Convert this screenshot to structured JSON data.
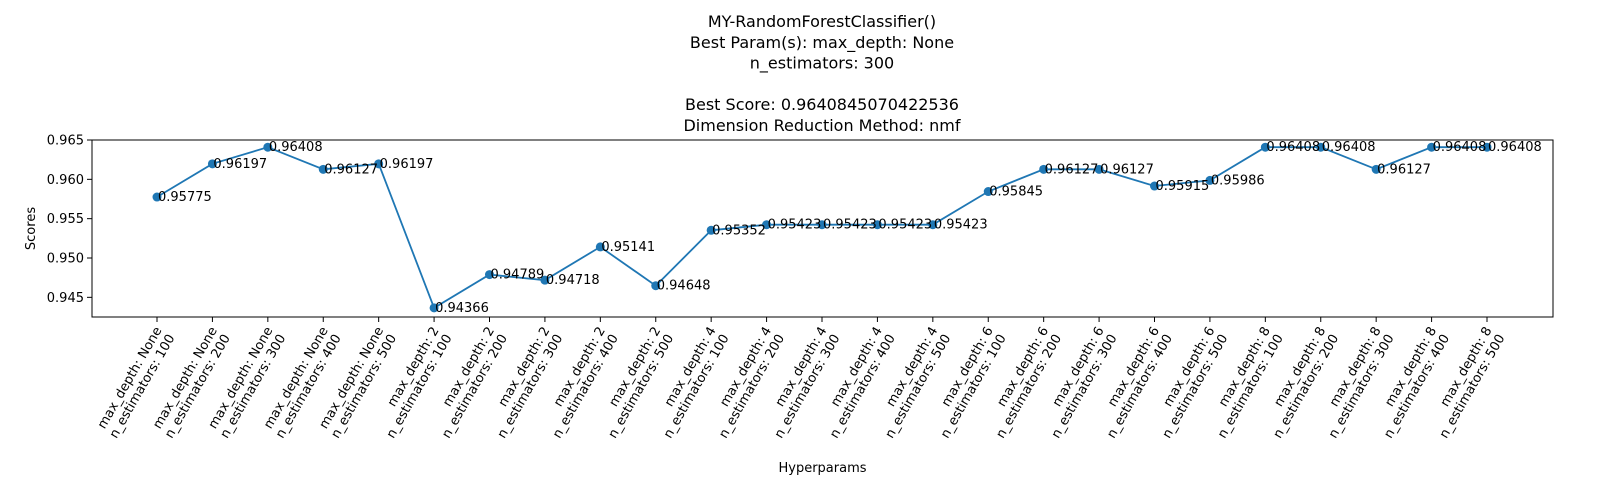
{
  "chart_data": {
    "type": "line",
    "title_lines": [
      "MY-RandomForestClassifier()",
      "Best Param(s): max_depth: None",
      "n_estimators: 300",
      "",
      "Best Score: 0.9640845070422536",
      "Dimension Reduction Method: nmf"
    ],
    "xlabel": "Hyperparams",
    "ylabel": "Scores",
    "ylim": [
      0.9425,
      0.965
    ],
    "yticks": [
      0.945,
      0.95,
      0.955,
      0.96,
      0.965
    ],
    "ytick_labels": [
      "0.945",
      "0.950",
      "0.955",
      "0.960",
      "0.965"
    ],
    "grid": false,
    "line_color": "#1f77b4",
    "categories": [
      [
        "max_depth: None",
        "n_estimators: 100"
      ],
      [
        "max_depth: None",
        "n_estimators: 200"
      ],
      [
        "max_depth: None",
        "n_estimators: 300"
      ],
      [
        "max_depth: None",
        "n_estimators: 400"
      ],
      [
        "max_depth: None",
        "n_estimators: 500"
      ],
      [
        "max_depth: 2",
        "n_estimators: 100"
      ],
      [
        "max_depth: 2",
        "n_estimators: 200"
      ],
      [
        "max_depth: 2",
        "n_estimators: 300"
      ],
      [
        "max_depth: 2",
        "n_estimators: 400"
      ],
      [
        "max_depth: 2",
        "n_estimators: 500"
      ],
      [
        "max_depth: 4",
        "n_estimators: 100"
      ],
      [
        "max_depth: 4",
        "n_estimators: 200"
      ],
      [
        "max_depth: 4",
        "n_estimators: 300"
      ],
      [
        "max_depth: 4",
        "n_estimators: 400"
      ],
      [
        "max_depth: 4",
        "n_estimators: 500"
      ],
      [
        "max_depth: 6",
        "n_estimators: 100"
      ],
      [
        "max_depth: 6",
        "n_estimators: 200"
      ],
      [
        "max_depth: 6",
        "n_estimators: 300"
      ],
      [
        "max_depth: 6",
        "n_estimators: 400"
      ],
      [
        "max_depth: 6",
        "n_estimators: 500"
      ],
      [
        "max_depth: 8",
        "n_estimators: 100"
      ],
      [
        "max_depth: 8",
        "n_estimators: 200"
      ],
      [
        "max_depth: 8",
        "n_estimators: 300"
      ],
      [
        "max_depth: 8",
        "n_estimators: 400"
      ],
      [
        "max_depth: 8",
        "n_estimators: 500"
      ]
    ],
    "values": [
      0.95775,
      0.96197,
      0.96408,
      0.96127,
      0.96197,
      0.94366,
      0.94789,
      0.94718,
      0.95141,
      0.94648,
      0.95352,
      0.95423,
      0.95423,
      0.95423,
      0.95423,
      0.95845,
      0.96127,
      0.96127,
      0.95915,
      0.95986,
      0.96408,
      0.96408,
      0.96127,
      0.96408,
      0.96408
    ],
    "data_labels": [
      "0.95775",
      "0.96197",
      "0.96408",
      "0.96127",
      "0.96197",
      "0.94366",
      "0.94789",
      "0.94718",
      "0.95141",
      "0.94648",
      "0.95352",
      "0.95423",
      "0.95423",
      "0.95423",
      "0.95423",
      "0.95845",
      "0.96127",
      "0.96127",
      "0.95915",
      "0.95986",
      "0.96408",
      "0.96408",
      "0.96127",
      "0.96408",
      "0.96408"
    ]
  }
}
